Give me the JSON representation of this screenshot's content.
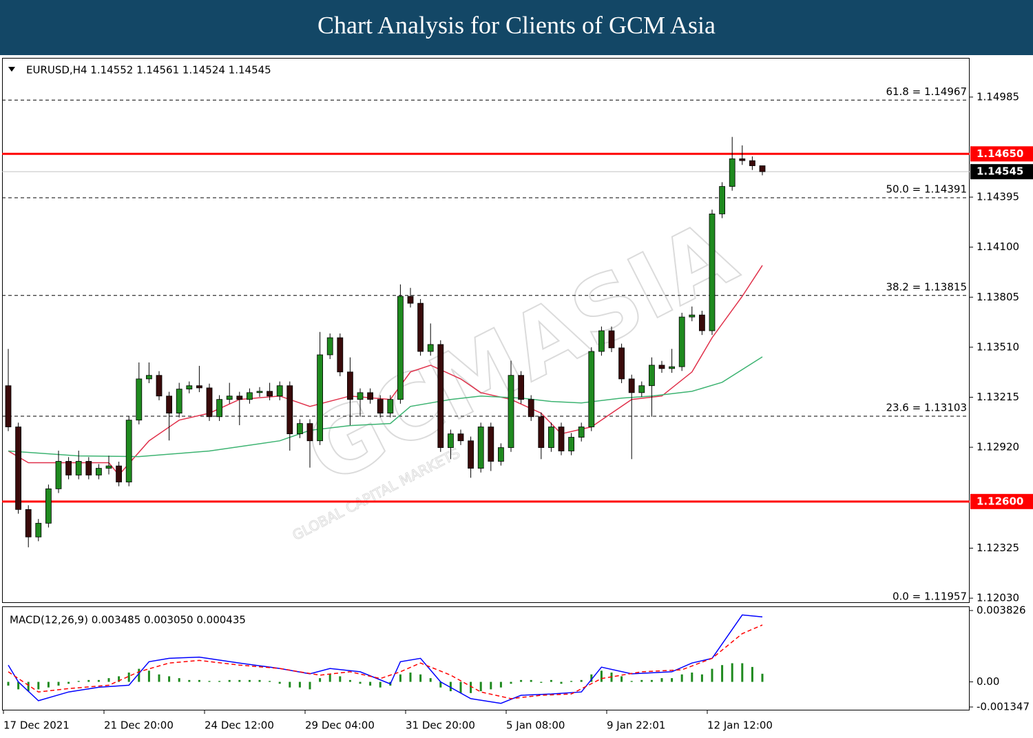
{
  "header": {
    "title": "Chart Analysis for Clients of GCM Asia"
  },
  "chart_data": [
    {
      "type": "candlestick",
      "title": "EURUSD,H4 1.14552 1.14561 1.14524 1.14545",
      "watermark": "GCMASIA",
      "watermark_sub": "GLOBAL CAPITAL MARKETS",
      "categories": [
        "17 Dec 2021",
        null,
        null,
        null,
        null,
        null,
        null,
        null,
        null,
        null,
        "21 Dec 20:00",
        null,
        null,
        null,
        null,
        null,
        null,
        null,
        null,
        null,
        "24 Dec 12:00",
        null,
        null,
        null,
        null,
        null,
        null,
        null,
        null,
        null,
        "29 Dec 04:00",
        null,
        null,
        null,
        null,
        null,
        null,
        null,
        null,
        null,
        "31 Dec 20:00",
        null,
        null,
        null,
        null,
        null,
        null,
        null,
        null,
        null,
        "5 Jan 08:00",
        null,
        null,
        null,
        null,
        null,
        null,
        null,
        null,
        null,
        "9 Jan 22:01",
        null,
        null,
        null,
        null,
        null,
        null,
        null,
        null,
        null,
        "12 Jan 12:00",
        null,
        null,
        null,
        null,
        null
      ],
      "open": [
        1.13283,
        1.1304,
        1.12553,
        1.12391,
        1.12472,
        1.12675,
        1.12837,
        1.12756,
        1.12837,
        1.12756,
        1.12796,
        1.1281,
        1.12715,
        1.1308,
        1.13323,
        1.13344,
        1.13222,
        1.13121,
        1.13263,
        1.13283,
        1.1327,
        1.131,
        1.13202,
        1.13222,
        1.13202,
        1.13242,
        1.1325,
        1.13222,
        1.13283,
        1.12999,
        1.1306,
        1.12958,
        1.13465,
        1.13566,
        1.13364,
        1.13202,
        1.13242,
        1.13202,
        1.13121,
        1.13202,
        1.1381,
        1.13769,
        1.13485,
        1.13526,
        1.12918,
        1.12999,
        1.12958,
        1.12796,
        1.1304,
        1.12837,
        1.12918,
        1.13344,
        1.13202,
        1.131,
        1.12918,
        1.1304,
        1.12898,
        1.12979,
        1.1304,
        1.13485,
        1.13607,
        1.13506,
        1.13323,
        1.13242,
        1.13283,
        1.13404,
        1.13384,
        1.13395,
        1.13688,
        1.137,
        1.13607,
        1.14296,
        1.14458,
        1.14621,
        1.1461,
        1.1458
      ],
      "high": [
        1.135,
        1.13065,
        1.12578,
        1.12497,
        1.127,
        1.129,
        1.12862,
        1.129,
        1.12862,
        1.12821,
        1.1287,
        1.12835,
        1.13105,
        1.1342,
        1.1342,
        1.13369,
        1.13247,
        1.133,
        1.13308,
        1.134,
        1.13295,
        1.13227,
        1.133,
        1.13247,
        1.13267,
        1.13275,
        1.133,
        1.13308,
        1.13308,
        1.13085,
        1.13085,
        1.136,
        1.13591,
        1.13591,
        1.1345,
        1.13267,
        1.13267,
        1.13227,
        1.13227,
        1.1388,
        1.1386,
        1.13794,
        1.1365,
        1.13551,
        1.13024,
        1.13024,
        1.12983,
        1.13065,
        1.13065,
        1.12943,
        1.1343,
        1.13369,
        1.13227,
        1.13125,
        1.13065,
        1.13065,
        1.13004,
        1.13065,
        1.1351,
        1.13632,
        1.13632,
        1.13531,
        1.13348,
        1.13308,
        1.1345,
        1.13429,
        1.135,
        1.13713,
        1.1375,
        1.13725,
        1.14321,
        1.14483,
        1.1475,
        1.147,
        1.14635,
        1.14561
      ],
      "low": [
        1.13015,
        1.12528,
        1.1233,
        1.12366,
        1.12447,
        1.1265,
        1.12731,
        1.12731,
        1.12731,
        1.12731,
        1.1276,
        1.1269,
        1.1269,
        1.13055,
        1.13298,
        1.13197,
        1.1296,
        1.13096,
        1.13238,
        1.13245,
        1.13075,
        1.13075,
        1.13177,
        1.1305,
        1.13177,
        1.13217,
        1.13197,
        1.13197,
        1.129,
        1.12974,
        1.128,
        1.12933,
        1.1344,
        1.13339,
        1.1305,
        1.131,
        1.13177,
        1.13096,
        1.13096,
        1.13177,
        1.13744,
        1.1346,
        1.1346,
        1.12893,
        1.1285,
        1.12933,
        1.1274,
        1.12771,
        1.1278,
        1.12812,
        1.12893,
        1.13177,
        1.13075,
        1.1285,
        1.12893,
        1.12873,
        1.12873,
        1.12954,
        1.13015,
        1.1346,
        1.13481,
        1.13298,
        1.1285,
        1.13217,
        1.131,
        1.13359,
        1.13359,
        1.1337,
        1.13663,
        1.13582,
        1.13582,
        1.14271,
        1.14433,
        1.14585,
        1.14555,
        1.14524
      ],
      "close": [
        1.1304,
        1.12553,
        1.12391,
        1.12472,
        1.12675,
        1.12837,
        1.12756,
        1.12837,
        1.12756,
        1.12796,
        1.1281,
        1.12715,
        1.1308,
        1.13323,
        1.13344,
        1.13222,
        1.13121,
        1.13263,
        1.13283,
        1.1327,
        1.131,
        1.13202,
        1.13222,
        1.13202,
        1.13242,
        1.1325,
        1.13222,
        1.13283,
        1.12999,
        1.1306,
        1.12958,
        1.13465,
        1.13566,
        1.13364,
        1.13202,
        1.13242,
        1.13202,
        1.13121,
        1.13202,
        1.1381,
        1.13769,
        1.13485,
        1.13526,
        1.12918,
        1.12999,
        1.12958,
        1.12796,
        1.1304,
        1.12837,
        1.12918,
        1.13344,
        1.13202,
        1.131,
        1.12918,
        1.1304,
        1.12898,
        1.12979,
        1.1304,
        1.13485,
        1.13607,
        1.13506,
        1.13323,
        1.13242,
        1.13283,
        1.13404,
        1.13384,
        1.13395,
        1.13688,
        1.137,
        1.13607,
        1.14296,
        1.14458,
        1.14621,
        1.1461,
        1.1458,
        1.14545
      ],
      "up_color": "#1f8a1f",
      "down_color": "#3a0a0a",
      "lines": [
        {
          "color": "#e0304a",
          "x": [
            0,
            2,
            4,
            10,
            11,
            14,
            17,
            20,
            23,
            27,
            30,
            34,
            38,
            40,
            42,
            45,
            47,
            50,
            53,
            55,
            58,
            60,
            62,
            65,
            68,
            70,
            73,
            75
          ],
          "values": [
            1.12898,
            1.12829,
            1.12829,
            1.12829,
            1.12756,
            1.12958,
            1.1308,
            1.13121,
            1.13202,
            1.13222,
            1.13161,
            1.13222,
            1.13202,
            1.13364,
            1.13404,
            1.13323,
            1.13242,
            1.13202,
            1.13121,
            1.12999,
            1.1304,
            1.13121,
            1.13202,
            1.13222,
            1.13364,
            1.13566,
            1.1381,
            1.13992
          ]
        },
        {
          "color": "#3cb371",
          "x": [
            0,
            7,
            13,
            20,
            27,
            30,
            34,
            38,
            40,
            44,
            47,
            51,
            54,
            57,
            61,
            64,
            68,
            71,
            75
          ],
          "values": [
            1.12898,
            1.12869,
            1.12865,
            1.12898,
            1.12958,
            1.1302,
            1.13048,
            1.1306,
            1.13161,
            1.13202,
            1.13222,
            1.1321,
            1.1319,
            1.13181,
            1.1321,
            1.13222,
            1.1325,
            1.13303,
            1.13453
          ]
        }
      ],
      "ylim": [
        1.12006,
        1.15212
      ],
      "yticks": [
        {
          "value": 1.14985,
          "label": "1.14985"
        },
        {
          "value": 1.14395,
          "label": "1.14395"
        },
        {
          "value": 1.141,
          "label": "1.14100"
        },
        {
          "value": 1.13805,
          "label": "1.13805"
        },
        {
          "value": 1.1351,
          "label": "1.13510"
        },
        {
          "value": 1.13215,
          "label": "1.13215"
        },
        {
          "value": 1.1292,
          "label": "1.12920"
        },
        {
          "value": 1.12325,
          "label": "1.12325"
        },
        {
          "value": 1.1203,
          "label": "1.12030"
        }
      ],
      "levels": [
        {
          "value": 1.14967,
          "label": "61.8 = 1.14967"
        },
        {
          "value": 1.14391,
          "label": "50.0 = 1.14391"
        },
        {
          "value": 1.13815,
          "label": "38.2 = 1.13815"
        },
        {
          "value": 1.13103,
          "label": "23.6 = 1.13103"
        },
        {
          "value": 1.11957,
          "label": "0.0 = 1.11957"
        }
      ],
      "hlines": [
        {
          "value": 1.1465,
          "label": "1.14650",
          "color": "#ff0000",
          "label_bg": "#ff0000"
        },
        {
          "value": 1.126,
          "label": "1.12600",
          "color": "#ff0000",
          "label_bg": "#ff0000"
        },
        {
          "value": 1.14545,
          "label": "1.14545",
          "color": "#c0c0c0",
          "label_bg": "#000000"
        }
      ]
    },
    {
      "type": "macd",
      "title": "MACD(12,26,9) 0.003485 0.003050 0.000435",
      "ylim": [
        -0.001347,
        0.003826
      ],
      "yticks": [
        0.003826,
        {
          "value": 0,
          "label": "0.00"
        },
        -0.001347
      ],
      "histogram": {
        "color": "#1f8a1f",
        "values": [
          -0.0002,
          -0.0004,
          -0.0005,
          -0.0004,
          -0.0003,
          -0.0002,
          -0.0001,
          5e-05,
          0.0001,
          0.0001,
          0.0002,
          0.0003,
          0.0005,
          0.0007,
          0.0006,
          0.0004,
          0.0003,
          0.0002,
          0.0001,
          0.0001,
          5e-05,
          5e-05,
          0.0001,
          0.0001,
          0.0001,
          0.0001,
          5e-05,
          -0.0001,
          -0.0003,
          -0.0003,
          -0.0004,
          0.0002,
          0.0004,
          0.0003,
          0.0001,
          -0.0001,
          -0.0002,
          -0.0003,
          -0.0002,
          0.0004,
          0.0005,
          0.0004,
          0.0002,
          -0.0003,
          -0.0005,
          -0.0006,
          -0.0006,
          -0.0005,
          -0.0004,
          -0.0003,
          -0.0001,
          0.0001,
          0.0001,
          -5e-05,
          0.0001,
          -0.0001,
          5e-05,
          0.0001,
          0.0004,
          0.0006,
          0.0005,
          0.0003,
          5e-05,
          0.0001,
          0.0001,
          0.0002,
          0.0002,
          0.0004,
          0.0005,
          0.0004,
          0.0007,
          0.0009,
          0.001,
          0.001,
          0.0008,
          0.000435
        ]
      },
      "lines": [
        {
          "color": "#0000ff",
          "dashed": false,
          "x": [
            0,
            1,
            3,
            6,
            9,
            12,
            14,
            16,
            19,
            23,
            27,
            30,
            32,
            35,
            38,
            39,
            41,
            43,
            46,
            49,
            51,
            54,
            57,
            59,
            62,
            66,
            68,
            70,
            73,
            75
          ],
          "values": [
            0.0009,
            0,
            -0.00101,
            -0.00054,
            -0.00029,
            -0.00018,
            0.00108,
            0.00126,
            0.00133,
            0.00101,
            0.00072,
            0.00043,
            0.00072,
            0.00054,
            -0.00011,
            0.00108,
            0.00126,
            0,
            -0.0009,
            -0.00115,
            -0.00072,
            -0.00065,
            -0.00054,
            0.00079,
            0.00043,
            0.00054,
            0.00101,
            0.00126,
            0.00359,
            0.003485
          ]
        },
        {
          "color": "#ff0000",
          "dashed": true,
          "x": [
            0,
            3,
            6,
            10,
            13,
            16,
            19,
            23,
            27,
            31,
            34,
            37,
            39,
            41,
            44,
            47,
            50,
            53,
            56,
            59,
            63,
            67,
            70,
            73,
            75
          ],
          "values": [
            0.00054,
            -0.00054,
            -0.00036,
            -0.00018,
            0.00054,
            0.00101,
            0.00115,
            0.0009,
            0.00072,
            0.00036,
            0.00054,
            0.00018,
            0.00054,
            0.00101,
            0.00036,
            -0.00054,
            -0.0009,
            -0.00072,
            -0.00065,
            0.00018,
            0.00054,
            0.00065,
            0.00126,
            0.00259,
            0.00305
          ]
        }
      ]
    }
  ]
}
